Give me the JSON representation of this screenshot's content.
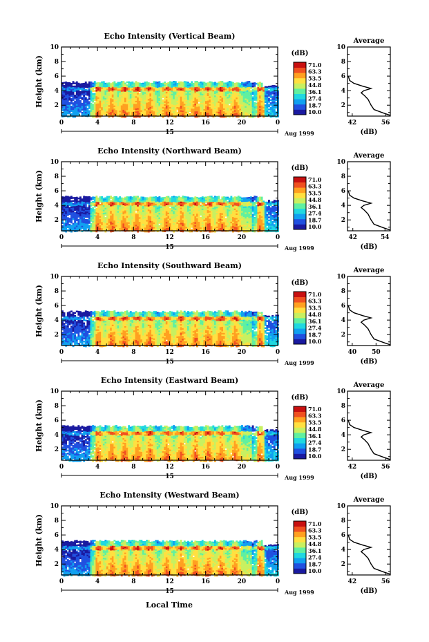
{
  "figure": {
    "xlabel": "Local Time",
    "colorbar_unit": "(dB)",
    "colorbar_ticks": [
      "71.0",
      "63.3",
      "53.5",
      "44.8",
      "36.1",
      "27.4",
      "18.7",
      "10.0"
    ],
    "colorbar_colors": [
      "#1a1aa0",
      "#2050e0",
      "#10a0f0",
      "#20d8e0",
      "#60f0a0",
      "#c8f060",
      "#ffe040",
      "#ffa020",
      "#f05020",
      "#c81010"
    ],
    "date_day": "15",
    "date_month": "Aug 1999",
    "avg_title": "Average",
    "avg_xlabel": "(dB)"
  },
  "chart_data": [
    {
      "type": "heatmap",
      "title": "Echo Intensity (Vertical Beam)",
      "ylabel": "Height (km)",
      "x_ticks": [
        "0",
        "4",
        "8",
        "12",
        "16",
        "20",
        "0"
      ],
      "y_ticks": [
        "2",
        "4",
        "6",
        "8",
        "10"
      ],
      "xlim": [
        0,
        24
      ],
      "ylim": [
        0.5,
        10
      ],
      "signal_top_km": 5.2,
      "bright_band_km": 4.3,
      "avg_profile": {
        "type": "line",
        "x_ticks": [
          "42",
          "56"
        ],
        "xlim": [
          40,
          58
        ],
        "y_ticks": [
          "2",
          "4",
          "6",
          "8",
          "10"
        ],
        "ylim": [
          0.5,
          10
        ]
      }
    },
    {
      "type": "heatmap",
      "title": "Echo Intensity (Northward Beam)",
      "ylabel": "Height (km)",
      "x_ticks": [
        "0",
        "4",
        "8",
        "12",
        "16",
        "20",
        "0"
      ],
      "y_ticks": [
        "2",
        "4",
        "6",
        "8",
        "10"
      ],
      "xlim": [
        0,
        24
      ],
      "ylim": [
        0.5,
        10
      ],
      "signal_top_km": 5.2,
      "bright_band_km": 4.3,
      "avg_profile": {
        "type": "line",
        "x_ticks": [
          "42",
          "54"
        ],
        "xlim": [
          40,
          56
        ],
        "y_ticks": [
          "2",
          "4",
          "6",
          "8",
          "10"
        ],
        "ylim": [
          0.5,
          10
        ]
      }
    },
    {
      "type": "heatmap",
      "title": "Echo Intensity (Southward Beam)",
      "ylabel": "Height (km)",
      "x_ticks": [
        "0",
        "4",
        "8",
        "12",
        "16",
        "20",
        "0"
      ],
      "y_ticks": [
        "2",
        "4",
        "6",
        "8",
        "10"
      ],
      "xlim": [
        0,
        24
      ],
      "ylim": [
        0.5,
        10
      ],
      "signal_top_km": 5.2,
      "bright_band_km": 4.3,
      "avg_profile": {
        "type": "line",
        "x_ticks": [
          "40",
          "50"
        ],
        "xlim": [
          38,
          56
        ],
        "y_ticks": [
          "2",
          "4",
          "6",
          "8",
          "10"
        ],
        "ylim": [
          0.5,
          10
        ]
      }
    },
    {
      "type": "heatmap",
      "title": "Echo Intensity (Eastward Beam)",
      "ylabel": "Height (km)",
      "x_ticks": [
        "0",
        "4",
        "8",
        "12",
        "16",
        "20",
        "0"
      ],
      "y_ticks": [
        "2",
        "4",
        "6",
        "8",
        "10"
      ],
      "xlim": [
        0,
        24
      ],
      "ylim": [
        0.5,
        10
      ],
      "signal_top_km": 5.2,
      "bright_band_km": 4.3,
      "avg_profile": {
        "type": "line",
        "x_ticks": [
          "42",
          "56"
        ],
        "xlim": [
          40,
          58
        ],
        "y_ticks": [
          "2",
          "4",
          "6",
          "8",
          "10"
        ],
        "ylim": [
          0.5,
          10
        ]
      }
    },
    {
      "type": "heatmap",
      "title": "Echo Intensity (Westward Beam)",
      "ylabel": "Height (km)",
      "x_ticks": [
        "0",
        "4",
        "8",
        "12",
        "16",
        "20",
        "0"
      ],
      "y_ticks": [
        "2",
        "4",
        "6",
        "8",
        "10"
      ],
      "xlim": [
        0,
        24
      ],
      "ylim": [
        0.5,
        10
      ],
      "signal_top_km": 5.2,
      "bright_band_km": 4.3,
      "avg_profile": {
        "type": "line",
        "x_ticks": [
          "42",
          "56"
        ],
        "xlim": [
          40,
          58
        ],
        "y_ticks": [
          "2",
          "4",
          "6",
          "8",
          "10"
        ],
        "ylim": [
          0.5,
          10
        ]
      }
    }
  ]
}
